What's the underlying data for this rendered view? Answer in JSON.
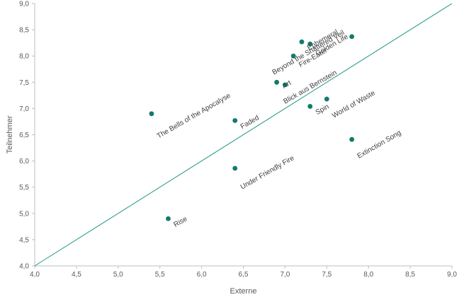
{
  "chart_data": {
    "type": "scatter",
    "title": "",
    "xlabel": "Externe",
    "ylabel": "Teilnehmer",
    "xlim": [
      4.0,
      9.0
    ],
    "ylim": [
      4.0,
      9.0
    ],
    "x_ticks": [
      "4,0",
      "4,5",
      "5,0",
      "5,5",
      "6,0",
      "6,5",
      "7,0",
      "7,5",
      "8,0",
      "8,5",
      "9,0"
    ],
    "y_ticks": [
      "4,0",
      "4,5",
      "5,0",
      "5,5",
      "6,0",
      "6,5",
      "7,0",
      "7,5",
      "8,0",
      "8,5",
      "9,0"
    ],
    "grid": false,
    "marker_color": "#0f7b6c",
    "line_color": "#23998a",
    "reference_line": {
      "from": [
        4.0,
        4.0
      ],
      "to": [
        9.0,
        9.0
      ]
    },
    "points": [
      {
        "label": "Rise",
        "x": 5.6,
        "y": 4.9
      },
      {
        "label": "The Bells of the Apocalyse",
        "x": 5.4,
        "y": 6.9
      },
      {
        "label": "Faded",
        "x": 6.4,
        "y": 6.77
      },
      {
        "label": "Under Friendly Fire",
        "x": 6.4,
        "y": 5.86
      },
      {
        "label": "Art",
        "x": 6.9,
        "y": 7.5
      },
      {
        "label": "Blick aus Bernstein",
        "x": 7.0,
        "y": 7.45
      },
      {
        "label": "Fire-Eater",
        "x": 7.1,
        "y": 8.0
      },
      {
        "label": "Ephemeral",
        "x": 7.2,
        "y": 8.27
      },
      {
        "label": "Golden Life",
        "x": 7.3,
        "y": 8.23
      },
      {
        "label": "Spin",
        "x": 7.3,
        "y": 7.04
      },
      {
        "label": "World of Waste",
        "x": 7.5,
        "y": 7.18
      },
      {
        "label": "Beyond the Shattered Veil",
        "x": 7.8,
        "y": 8.37
      },
      {
        "label": "Extinction Song",
        "x": 7.8,
        "y": 6.41
      }
    ]
  }
}
